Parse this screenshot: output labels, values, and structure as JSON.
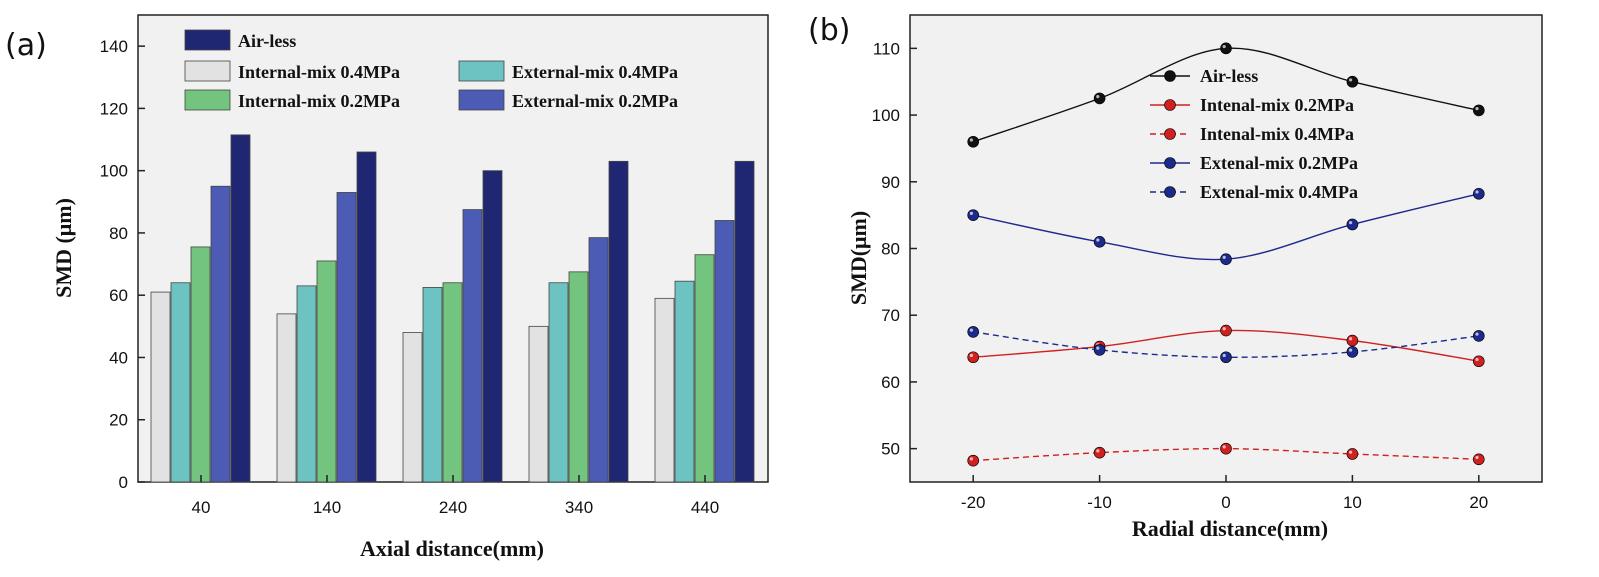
{
  "chart_data": [
    {
      "type": "bar",
      "panel_label": "(a)",
      "xlabel": "Axial distance(mm)",
      "ylabel": "SMD (μm)",
      "ylim": [
        0,
        150
      ],
      "yticks": [
        "0",
        "20",
        "40",
        "60",
        "80",
        "100",
        "120",
        "140"
      ],
      "categories": [
        "40",
        "140",
        "240",
        "340",
        "440"
      ],
      "series": [
        {
          "name": "Internal-mix 0.4MPa",
          "color": "#e2e2e2",
          "values": [
            61,
            54,
            48,
            50,
            59
          ]
        },
        {
          "name": "External-mix 0.4MPa",
          "color": "#6dc3c1",
          "values": [
            64,
            63,
            62.5,
            64,
            64.5
          ]
        },
        {
          "name": "Internal-mix 0.2MPa",
          "color": "#72c47e",
          "values": [
            75.5,
            71,
            64,
            67.5,
            73
          ]
        },
        {
          "name": "External-mix 0.2MPa",
          "color": "#4c5cb4",
          "values": [
            95,
            93,
            87.5,
            78.5,
            84
          ]
        },
        {
          "name": "Air-less",
          "color": "#1f2672",
          "values": [
            111.5,
            106,
            100,
            103,
            103
          ]
        }
      ]
    },
    {
      "type": "line",
      "panel_label": "(b)",
      "xlabel": "Radial distance(mm)",
      "ylabel": "SMD(μm)",
      "xlim": [
        -25,
        25
      ],
      "ylim": [
        45,
        115
      ],
      "xticks": [
        "-20",
        "-10",
        "0",
        "10",
        "20"
      ],
      "yticks": [
        "50",
        "60",
        "70",
        "80",
        "90",
        "100",
        "110"
      ],
      "x": [
        -20,
        -10,
        0,
        10,
        20
      ],
      "series": [
        {
          "name": "Air-less",
          "color": "#111111",
          "dashed": false,
          "values": [
            96,
            102.5,
            110,
            105,
            100.7
          ]
        },
        {
          "name": "Intenal-mix  0.2MPa",
          "color": "#d02020",
          "dashed": false,
          "values": [
            63.7,
            65.3,
            67.7,
            66.2,
            63.1
          ]
        },
        {
          "name": "Intenal-mix  0.4MPa",
          "color": "#d02020",
          "dashed": true,
          "values": [
            48.2,
            49.4,
            50,
            49.2,
            48.4
          ]
        },
        {
          "name": "Extenal-mix 0.2MPa",
          "color": "#1c2a8c",
          "dashed": false,
          "values": [
            85,
            81,
            78.4,
            83.6,
            88.2
          ]
        },
        {
          "name": "Extenal-mix 0.4MPa",
          "color": "#1c2a8c",
          "dashed": true,
          "values": [
            67.5,
            64.8,
            63.7,
            64.5,
            66.9
          ]
        }
      ]
    }
  ]
}
